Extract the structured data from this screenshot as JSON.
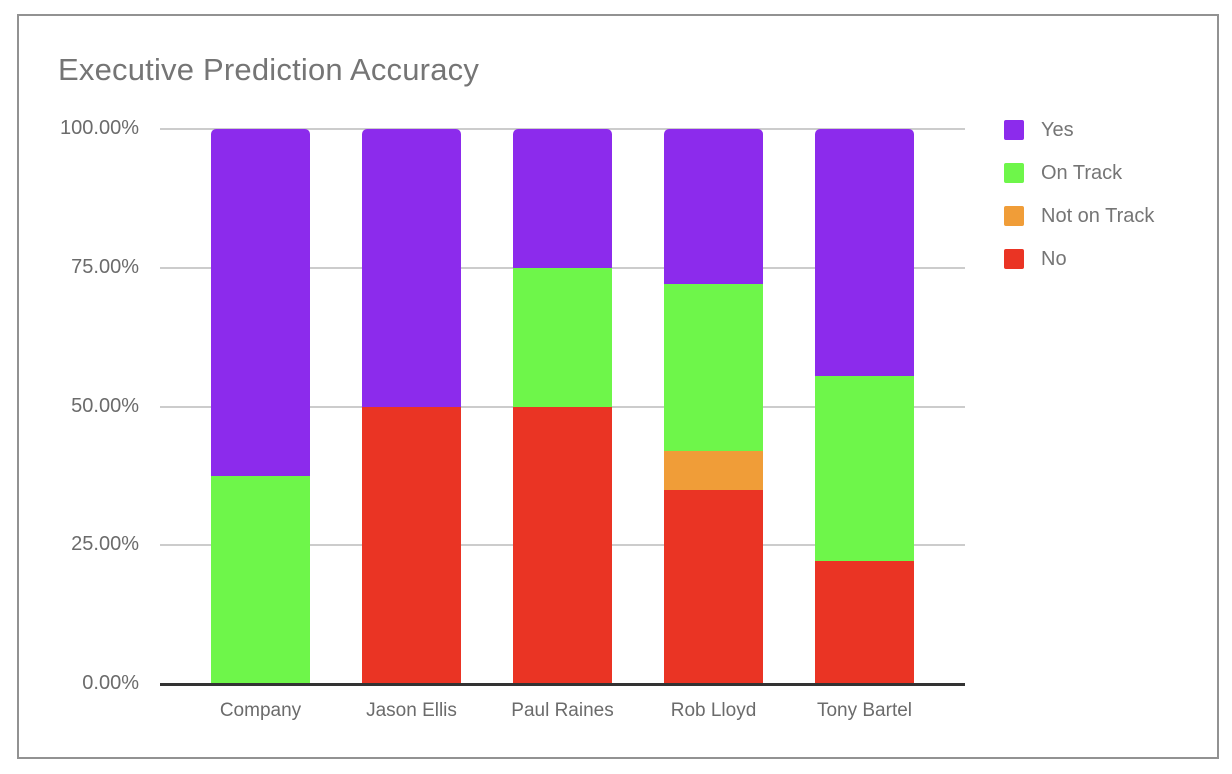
{
  "page": {
    "title": "Executive Prediction Accuracy"
  },
  "chart_data": {
    "type": "bar",
    "stacked": true,
    "title": "Executive Prediction Accuracy",
    "categories": [
      "Company",
      "Jason Ellis",
      "Paul Raines",
      "Rob Lloyd",
      "Tony Bartel"
    ],
    "series": [
      {
        "name": "No",
        "color": "#ea3424",
        "values": [
          0,
          50,
          50,
          35,
          22.2
        ]
      },
      {
        "name": "Not on Track",
        "color": "#f09d38",
        "values": [
          0,
          0,
          0,
          7,
          0
        ]
      },
      {
        "name": "On Track",
        "color": "#6ef64a",
        "values": [
          37.5,
          0,
          25,
          30,
          33.3
        ]
      },
      {
        "name": "Yes",
        "color": "#8c2bec",
        "values": [
          62.5,
          50,
          25,
          28,
          44.5
        ]
      }
    ],
    "legend": {
      "position": "right",
      "order": [
        "Yes",
        "On Track",
        "Not on Track",
        "No"
      ]
    },
    "y_axis": {
      "min": 0,
      "max": 100,
      "unit": "%",
      "ticks": [
        {
          "label": "100.00%",
          "value": 100
        },
        {
          "label": "75.00%",
          "value": 75
        },
        {
          "label": "50.00%",
          "value": 50
        },
        {
          "label": "25.00%",
          "value": 25
        },
        {
          "label": "0.00%",
          "value": 0
        }
      ]
    },
    "grid": true,
    "xlabel": "",
    "ylabel": ""
  },
  "style_colors": {
    "title_text": "#757575",
    "axis_text": "#6b6b6b",
    "gridline": "#cccccc",
    "axis_line": "#333333",
    "card_border": "#929292",
    "background": "#ffffff"
  }
}
